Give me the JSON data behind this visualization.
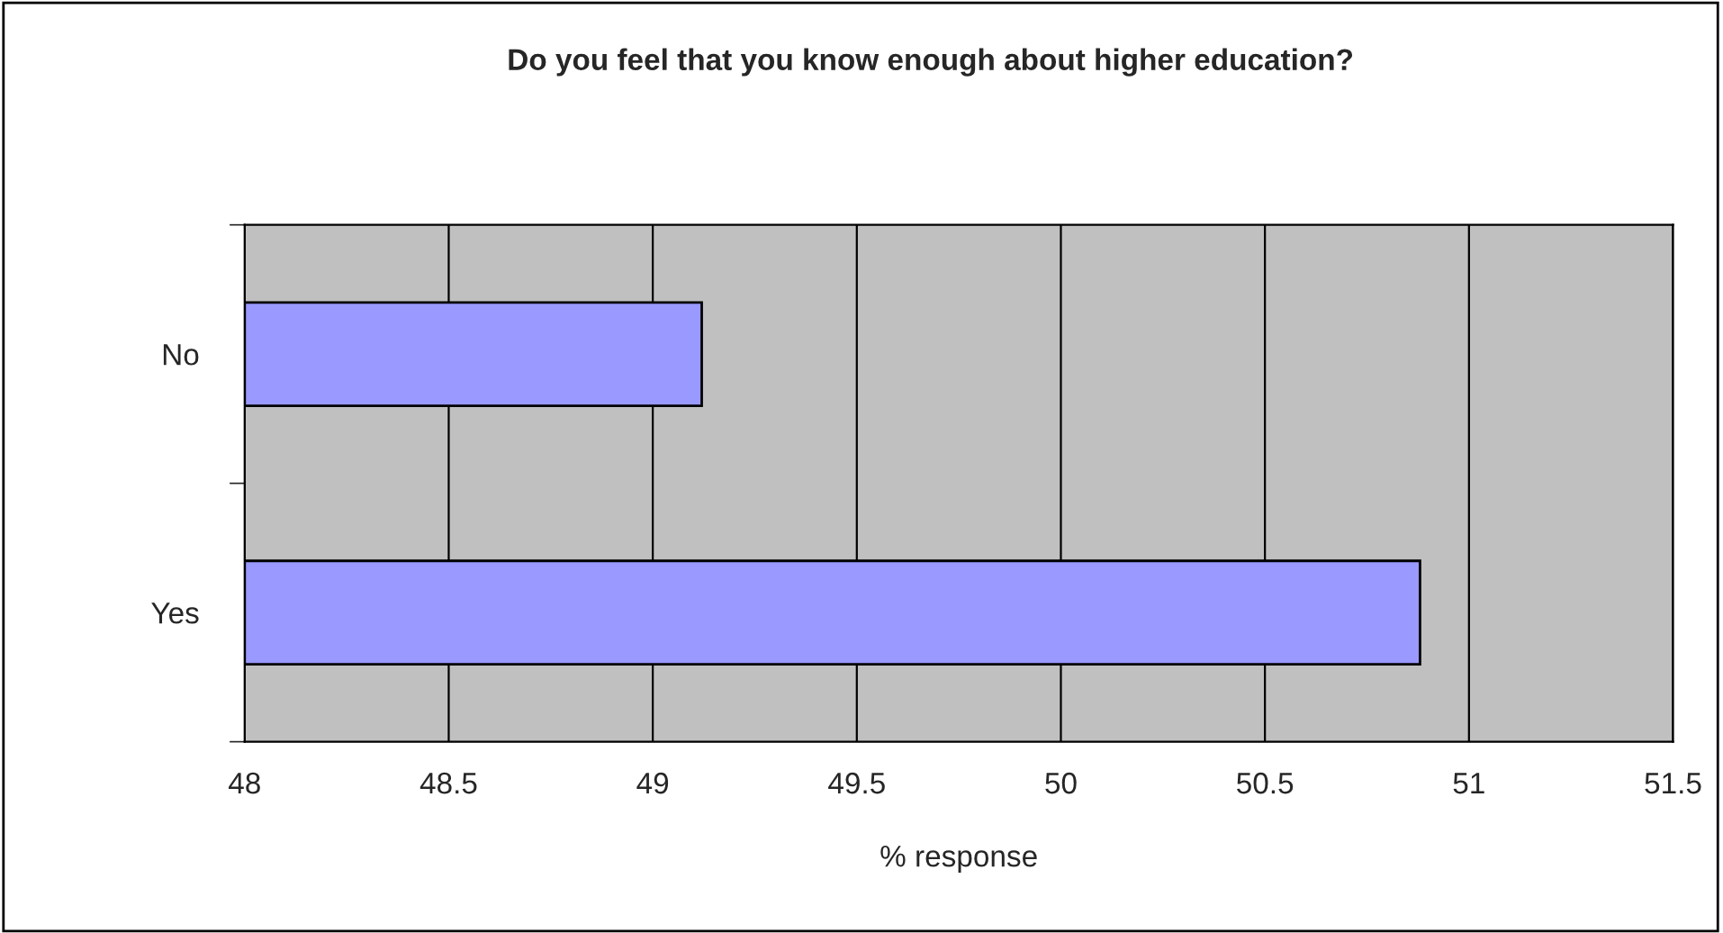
{
  "chart_data": {
    "type": "bar",
    "orientation": "horizontal",
    "title": "Do you feel that you know enough about higher education?",
    "xlabel": "% response",
    "categories": [
      "No",
      "Yes"
    ],
    "values": [
      49.12,
      50.88
    ],
    "color": "#9999ff",
    "xlim": [
      48,
      51.5
    ],
    "xticks": [
      48,
      48.5,
      49,
      49.5,
      50,
      50.5,
      51,
      51.5
    ],
    "grid": "x",
    "legend": false
  }
}
